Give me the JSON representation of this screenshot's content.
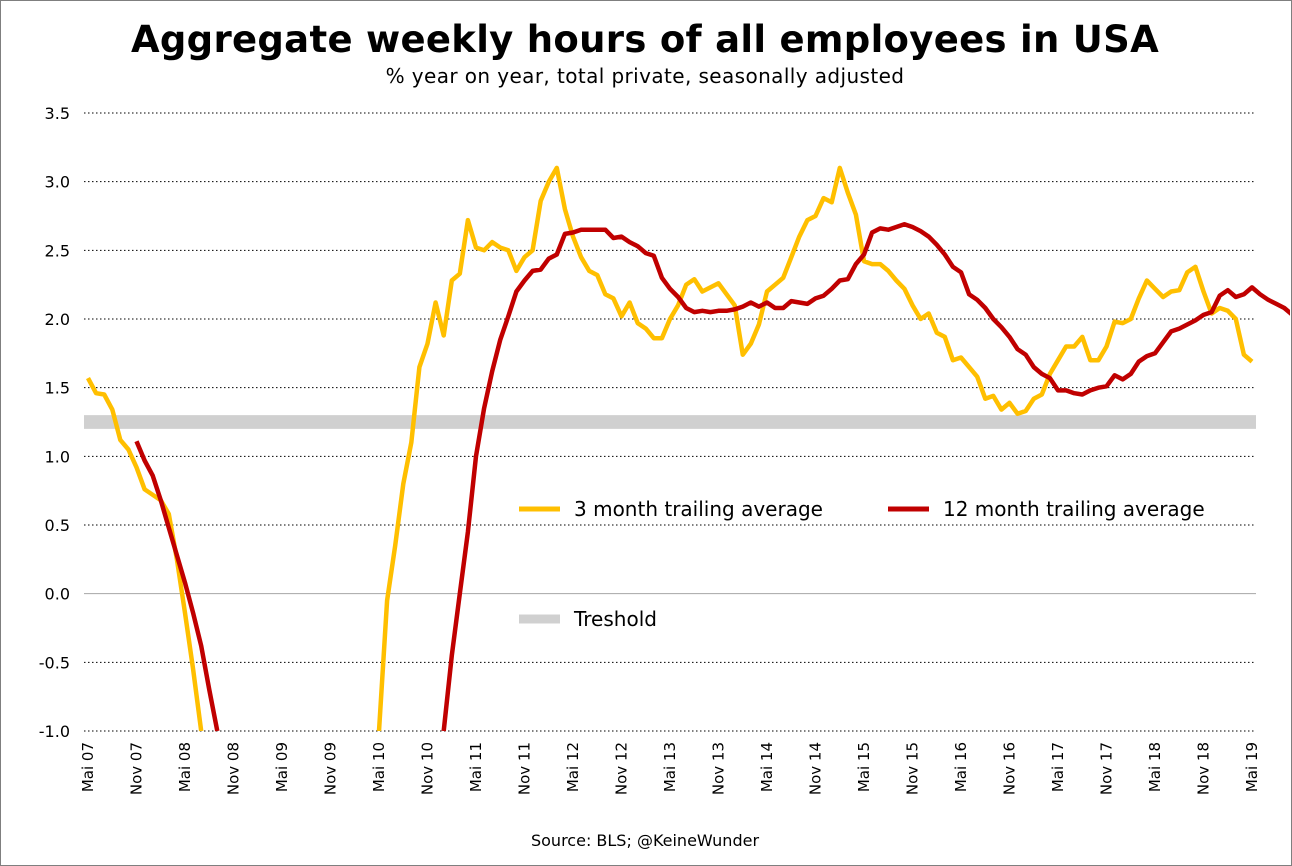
{
  "chart_data": {
    "type": "line",
    "title": "Aggregate weekly hours of all employees in USA",
    "subtitle": "% year on year, total private, seasonally adjusted",
    "source": "Source: BLS;  @KeineWunder",
    "ylim": [
      -1.0,
      3.5
    ],
    "yticks": [
      "3.5",
      "3.0",
      "2.5",
      "2.0",
      "1.5",
      "1.0",
      "0.5",
      "0.0",
      "-0.5",
      "-1.0"
    ],
    "grid": "horizontal dotted",
    "xticks": [
      "Mai 07",
      "Nov 07",
      "Mai 08",
      "Nov 08",
      "Mai 09",
      "Nov 09",
      "Mai 10",
      "Nov 10",
      "Mai 11",
      "Nov 11",
      "Mai 12",
      "Nov 12",
      "Mai 13",
      "Nov 13",
      "Mai 14",
      "Nov 14",
      "Mai 15",
      "Nov 15",
      "Mai 16",
      "Nov 16",
      "Mai 17",
      "Nov 17",
      "Mai 18",
      "Nov 18",
      "Mai 19"
    ],
    "x_start": "Mai 07",
    "x_end": "Mai 19",
    "threshold": {
      "name": "Treshold",
      "low": 1.2,
      "high": 1.3,
      "color": "#d0d0d0"
    },
    "legend": "inside plot, center-right",
    "series": [
      {
        "name": "3 month trailing average",
        "color": "#ffbf00",
        "start": "Mai 07",
        "values": [
          1.57,
          1.46,
          1.45,
          1.34,
          1.12,
          1.05,
          0.92,
          0.76,
          0.72,
          0.68,
          0.58,
          0.25,
          -0.14,
          -0.55,
          -1.0,
          null,
          null,
          null,
          null,
          null,
          null,
          null,
          null,
          null,
          null,
          null,
          null,
          null,
          null,
          null,
          null,
          null,
          null,
          null,
          null,
          null,
          -1.0,
          -0.05,
          0.35,
          0.8,
          1.1,
          1.65,
          1.82,
          2.12,
          1.88,
          2.28,
          2.33,
          2.72,
          2.52,
          2.5,
          2.56,
          2.52,
          2.5,
          2.35,
          2.45,
          2.5,
          2.86,
          3.0,
          3.1,
          2.8,
          2.6,
          2.45,
          2.35,
          2.32,
          2.18,
          2.15,
          2.02,
          2.12,
          1.97,
          1.93,
          1.86,
          1.86,
          2.0,
          2.1,
          2.25,
          2.29,
          2.2,
          2.23,
          2.26,
          2.18,
          2.1,
          1.74,
          1.82,
          1.96,
          2.2,
          2.25,
          2.3,
          2.45,
          2.6,
          2.72,
          2.75,
          2.88,
          2.85,
          3.1,
          2.92,
          2.76,
          2.42,
          2.4,
          2.4,
          2.35,
          2.28,
          2.22,
          2.1,
          2.0,
          2.04,
          1.9,
          1.87,
          1.7,
          1.72,
          1.65,
          1.58,
          1.42,
          1.44,
          1.34,
          1.39,
          1.31,
          1.33,
          1.42,
          1.45,
          1.6,
          1.7,
          1.8,
          1.8,
          1.87,
          1.7,
          1.7,
          1.8,
          1.98,
          1.97,
          2.0,
          2.15,
          2.28,
          2.22,
          2.16,
          2.2,
          2.21,
          2.34,
          2.38,
          2.2,
          2.04,
          2.08,
          2.06,
          2.0,
          1.74,
          1.69
        ]
      },
      {
        "name": "12 month trailing average",
        "color": "#c00000",
        "start": "Mai 07",
        "values": [
          null,
          null,
          null,
          null,
          null,
          null,
          1.11,
          0.97,
          0.86,
          0.68,
          0.48,
          0.28,
          0.08,
          -0.14,
          -0.38,
          -0.7,
          -1.0,
          null,
          null,
          null,
          null,
          null,
          null,
          null,
          null,
          null,
          null,
          null,
          null,
          null,
          null,
          null,
          null,
          null,
          null,
          null,
          null,
          null,
          null,
          null,
          null,
          null,
          null,
          null,
          -1.0,
          -0.45,
          0.0,
          0.45,
          1.0,
          1.35,
          1.62,
          1.85,
          2.02,
          2.2,
          2.28,
          2.35,
          2.36,
          2.44,
          2.47,
          2.62,
          2.63,
          2.65,
          2.65,
          2.65,
          2.65,
          2.59,
          2.6,
          2.56,
          2.53,
          2.48,
          2.46,
          2.3,
          2.22,
          2.16,
          2.08,
          2.05,
          2.06,
          2.05,
          2.06,
          2.06,
          2.07,
          2.09,
          2.12,
          2.09,
          2.12,
          2.08,
          2.08,
          2.13,
          2.12,
          2.11,
          2.15,
          2.17,
          2.22,
          2.28,
          2.29,
          2.4,
          2.47,
          2.63,
          2.66,
          2.65,
          2.67,
          2.69,
          2.67,
          2.64,
          2.6,
          2.54,
          2.47,
          2.38,
          2.34,
          2.18,
          2.14,
          2.08,
          2.0,
          1.94,
          1.87,
          1.78,
          1.74,
          1.65,
          1.6,
          1.57,
          1.48,
          1.48,
          1.46,
          1.45,
          1.48,
          1.5,
          1.51,
          1.59,
          1.56,
          1.6,
          1.69,
          1.73,
          1.75,
          1.83,
          1.91,
          1.93,
          1.96,
          1.99,
          2.03,
          2.05,
          2.17,
          2.21,
          2.16,
          2.18,
          2.23,
          2.18,
          2.14,
          2.11,
          2.08,
          2.03
        ]
      }
    ]
  }
}
